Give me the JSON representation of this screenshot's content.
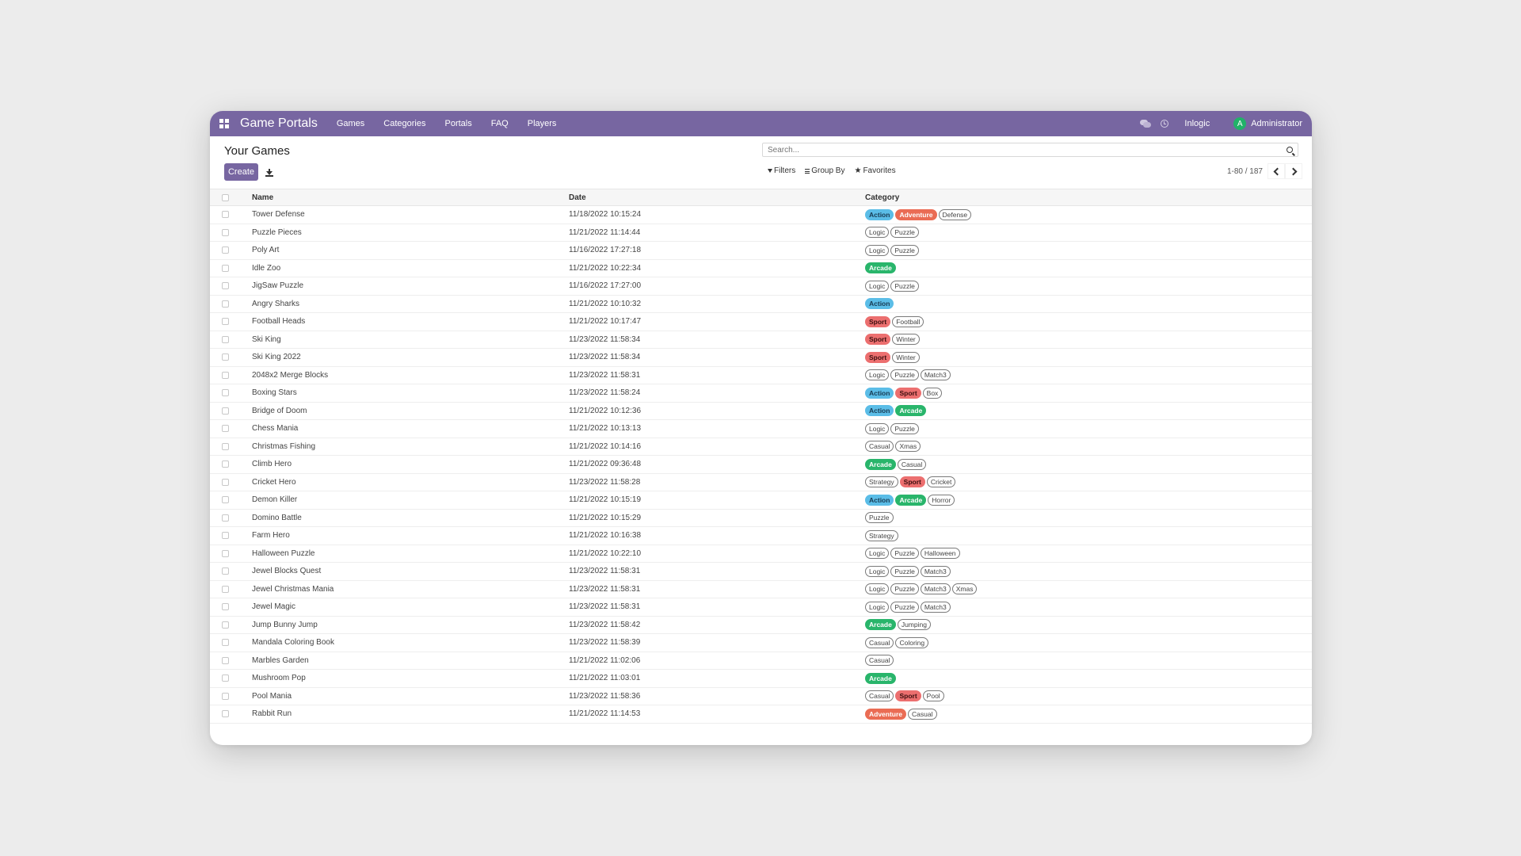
{
  "navbar": {
    "brand": "Game Portals",
    "menu": [
      "Games",
      "Categories",
      "Portals",
      "FAQ",
      "Players"
    ],
    "company": "Inlogic",
    "user_initial": "A",
    "user_name": "Administrator"
  },
  "control": {
    "title": "Your Games",
    "create_label": "Create",
    "search_placeholder": "Search...",
    "filters_label": "Filters",
    "groupby_label": "Group By",
    "favorites_label": "Favorites",
    "pager": "1-80 / 187"
  },
  "table": {
    "headers": {
      "name": "Name",
      "date": "Date",
      "category": "Category"
    },
    "rows": [
      {
        "name": "Tower Defense",
        "date": "11/18/2022 10:15:24",
        "tags": [
          "Action",
          "Adventure",
          "Defense"
        ]
      },
      {
        "name": "Puzzle Pieces",
        "date": "11/21/2022 11:14:44",
        "tags": [
          "Logic",
          "Puzzle"
        ]
      },
      {
        "name": "Poly Art",
        "date": "11/16/2022 17:27:18",
        "tags": [
          "Logic",
          "Puzzle"
        ]
      },
      {
        "name": "Idle Zoo",
        "date": "11/21/2022 10:22:34",
        "tags": [
          "Arcade"
        ]
      },
      {
        "name": "JigSaw Puzzle",
        "date": "11/16/2022 17:27:00",
        "tags": [
          "Logic",
          "Puzzle"
        ]
      },
      {
        "name": "Angry Sharks",
        "date": "11/21/2022 10:10:32",
        "tags": [
          "Action"
        ]
      },
      {
        "name": "Football Heads",
        "date": "11/21/2022 10:17:47",
        "tags": [
          "Sport",
          "Football"
        ]
      },
      {
        "name": "Ski King",
        "date": "11/23/2022 11:58:34",
        "tags": [
          "Sport",
          "Winter"
        ]
      },
      {
        "name": "Ski King 2022",
        "date": "11/23/2022 11:58:34",
        "tags": [
          "Sport",
          "Winter"
        ]
      },
      {
        "name": "2048x2 Merge Blocks",
        "date": "11/23/2022 11:58:31",
        "tags": [
          "Logic",
          "Puzzle",
          "Match3"
        ]
      },
      {
        "name": "Boxing Stars",
        "date": "11/23/2022 11:58:24",
        "tags": [
          "Action",
          "Sport",
          "Box"
        ]
      },
      {
        "name": "Bridge of Doom",
        "date": "11/21/2022 10:12:36",
        "tags": [
          "Action",
          "Arcade"
        ]
      },
      {
        "name": "Chess Mania",
        "date": "11/21/2022 10:13:13",
        "tags": [
          "Logic",
          "Puzzle"
        ]
      },
      {
        "name": "Christmas Fishing",
        "date": "11/21/2022 10:14:16",
        "tags": [
          "Casual",
          "Xmas"
        ]
      },
      {
        "name": "Climb Hero",
        "date": "11/21/2022 09:36:48",
        "tags": [
          "Arcade",
          "Casual"
        ]
      },
      {
        "name": "Cricket Hero",
        "date": "11/23/2022 11:58:28",
        "tags": [
          "Strategy",
          "Sport",
          "Cricket"
        ]
      },
      {
        "name": "Demon Killer",
        "date": "11/21/2022 10:15:19",
        "tags": [
          "Action",
          "Arcade",
          "Horror"
        ]
      },
      {
        "name": "Domino Battle",
        "date": "11/21/2022 10:15:29",
        "tags": [
          "Puzzle"
        ]
      },
      {
        "name": "Farm Hero",
        "date": "11/21/2022 10:16:38",
        "tags": [
          "Strategy"
        ]
      },
      {
        "name": "Halloween Puzzle",
        "date": "11/21/2022 10:22:10",
        "tags": [
          "Logic",
          "Puzzle",
          "Halloween"
        ]
      },
      {
        "name": "Jewel Blocks Quest",
        "date": "11/23/2022 11:58:31",
        "tags": [
          "Logic",
          "Puzzle",
          "Match3"
        ]
      },
      {
        "name": "Jewel Christmas Mania",
        "date": "11/23/2022 11:58:31",
        "tags": [
          "Logic",
          "Puzzle",
          "Match3",
          "Xmas"
        ]
      },
      {
        "name": "Jewel Magic",
        "date": "11/23/2022 11:58:31",
        "tags": [
          "Logic",
          "Puzzle",
          "Match3"
        ]
      },
      {
        "name": "Jump Bunny Jump",
        "date": "11/23/2022 11:58:42",
        "tags": [
          "Arcade",
          "Jumping"
        ]
      },
      {
        "name": "Mandala Coloring Book",
        "date": "11/23/2022 11:58:39",
        "tags": [
          "Casual",
          "Coloring"
        ]
      },
      {
        "name": "Marbles Garden",
        "date": "11/21/2022 11:02:06",
        "tags": [
          "Casual"
        ]
      },
      {
        "name": "Mushroom Pop",
        "date": "11/21/2022 11:03:01",
        "tags": [
          "Arcade"
        ]
      },
      {
        "name": "Pool Mania",
        "date": "11/23/2022 11:58:36",
        "tags": [
          "Casual",
          "Sport",
          "Pool"
        ]
      },
      {
        "name": "Rabbit Run",
        "date": "11/21/2022 11:14:53",
        "tags": [
          "Adventure",
          "Casual"
        ]
      }
    ]
  },
  "colors": {
    "navbar": "#7766a1",
    "Action": "#5bbde7",
    "Adventure": "#ea6c54",
    "Arcade": "#29b56b",
    "Sport": "#ec6f6f"
  },
  "icons": [
    "apps-grid-icon",
    "chat-icon",
    "clock-icon",
    "download-icon",
    "search-icon",
    "filter-icon",
    "group-by-icon",
    "star-icon",
    "chevron-left-icon",
    "chevron-right-icon"
  ]
}
